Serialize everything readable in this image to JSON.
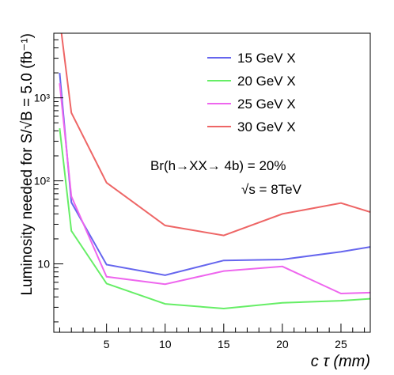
{
  "chart_data": {
    "type": "line",
    "xlabel": "c τ (mm)",
    "ylabel": "Luminosity needed for S/√B = 5.0 (fb⁻¹)",
    "xlim": [
      0.5,
      27.5
    ],
    "ylim": [
      1.5,
      6000
    ],
    "yscale": "log",
    "xticks": [
      5,
      10,
      15,
      20,
      25
    ],
    "yticks": [
      {
        "value": 10,
        "label": "10"
      },
      {
        "value": 100,
        "label": "10²"
      },
      {
        "value": 1000,
        "label": "10³"
      }
    ],
    "grid": false,
    "legend_position": "top-right",
    "annotations": [
      "Br(h→XX→ 4b) = 20%",
      "√s = 8TeV"
    ],
    "series": [
      {
        "name": "15 GeV X",
        "color": "#6666ee",
        "x": [
          1,
          2,
          5,
          10,
          15,
          20,
          25,
          27.5
        ],
        "y": [
          2000,
          55,
          9.8,
          7.3,
          11,
          11.3,
          14,
          16
        ]
      },
      {
        "name": "20 GeV X",
        "color": "#66ee66",
        "x": [
          1,
          2,
          5,
          10,
          15,
          20,
          25,
          27.5
        ],
        "y": [
          430,
          25,
          5.8,
          3.3,
          2.9,
          3.4,
          3.6,
          3.8
        ]
      },
      {
        "name": "25 GeV X",
        "color": "#ee66ee",
        "x": [
          1,
          2,
          5,
          10,
          15,
          20,
          25,
          27.5
        ],
        "y": [
          1500,
          65,
          7,
          5.7,
          8.2,
          9.3,
          4.4,
          4.5
        ]
      },
      {
        "name": "30 GeV X",
        "color": "#ee6666",
        "x": [
          1,
          2,
          5,
          10,
          15,
          20,
          25,
          27.5
        ],
        "y": [
          9000,
          660,
          95,
          29,
          22,
          40,
          54,
          42
        ]
      }
    ]
  }
}
